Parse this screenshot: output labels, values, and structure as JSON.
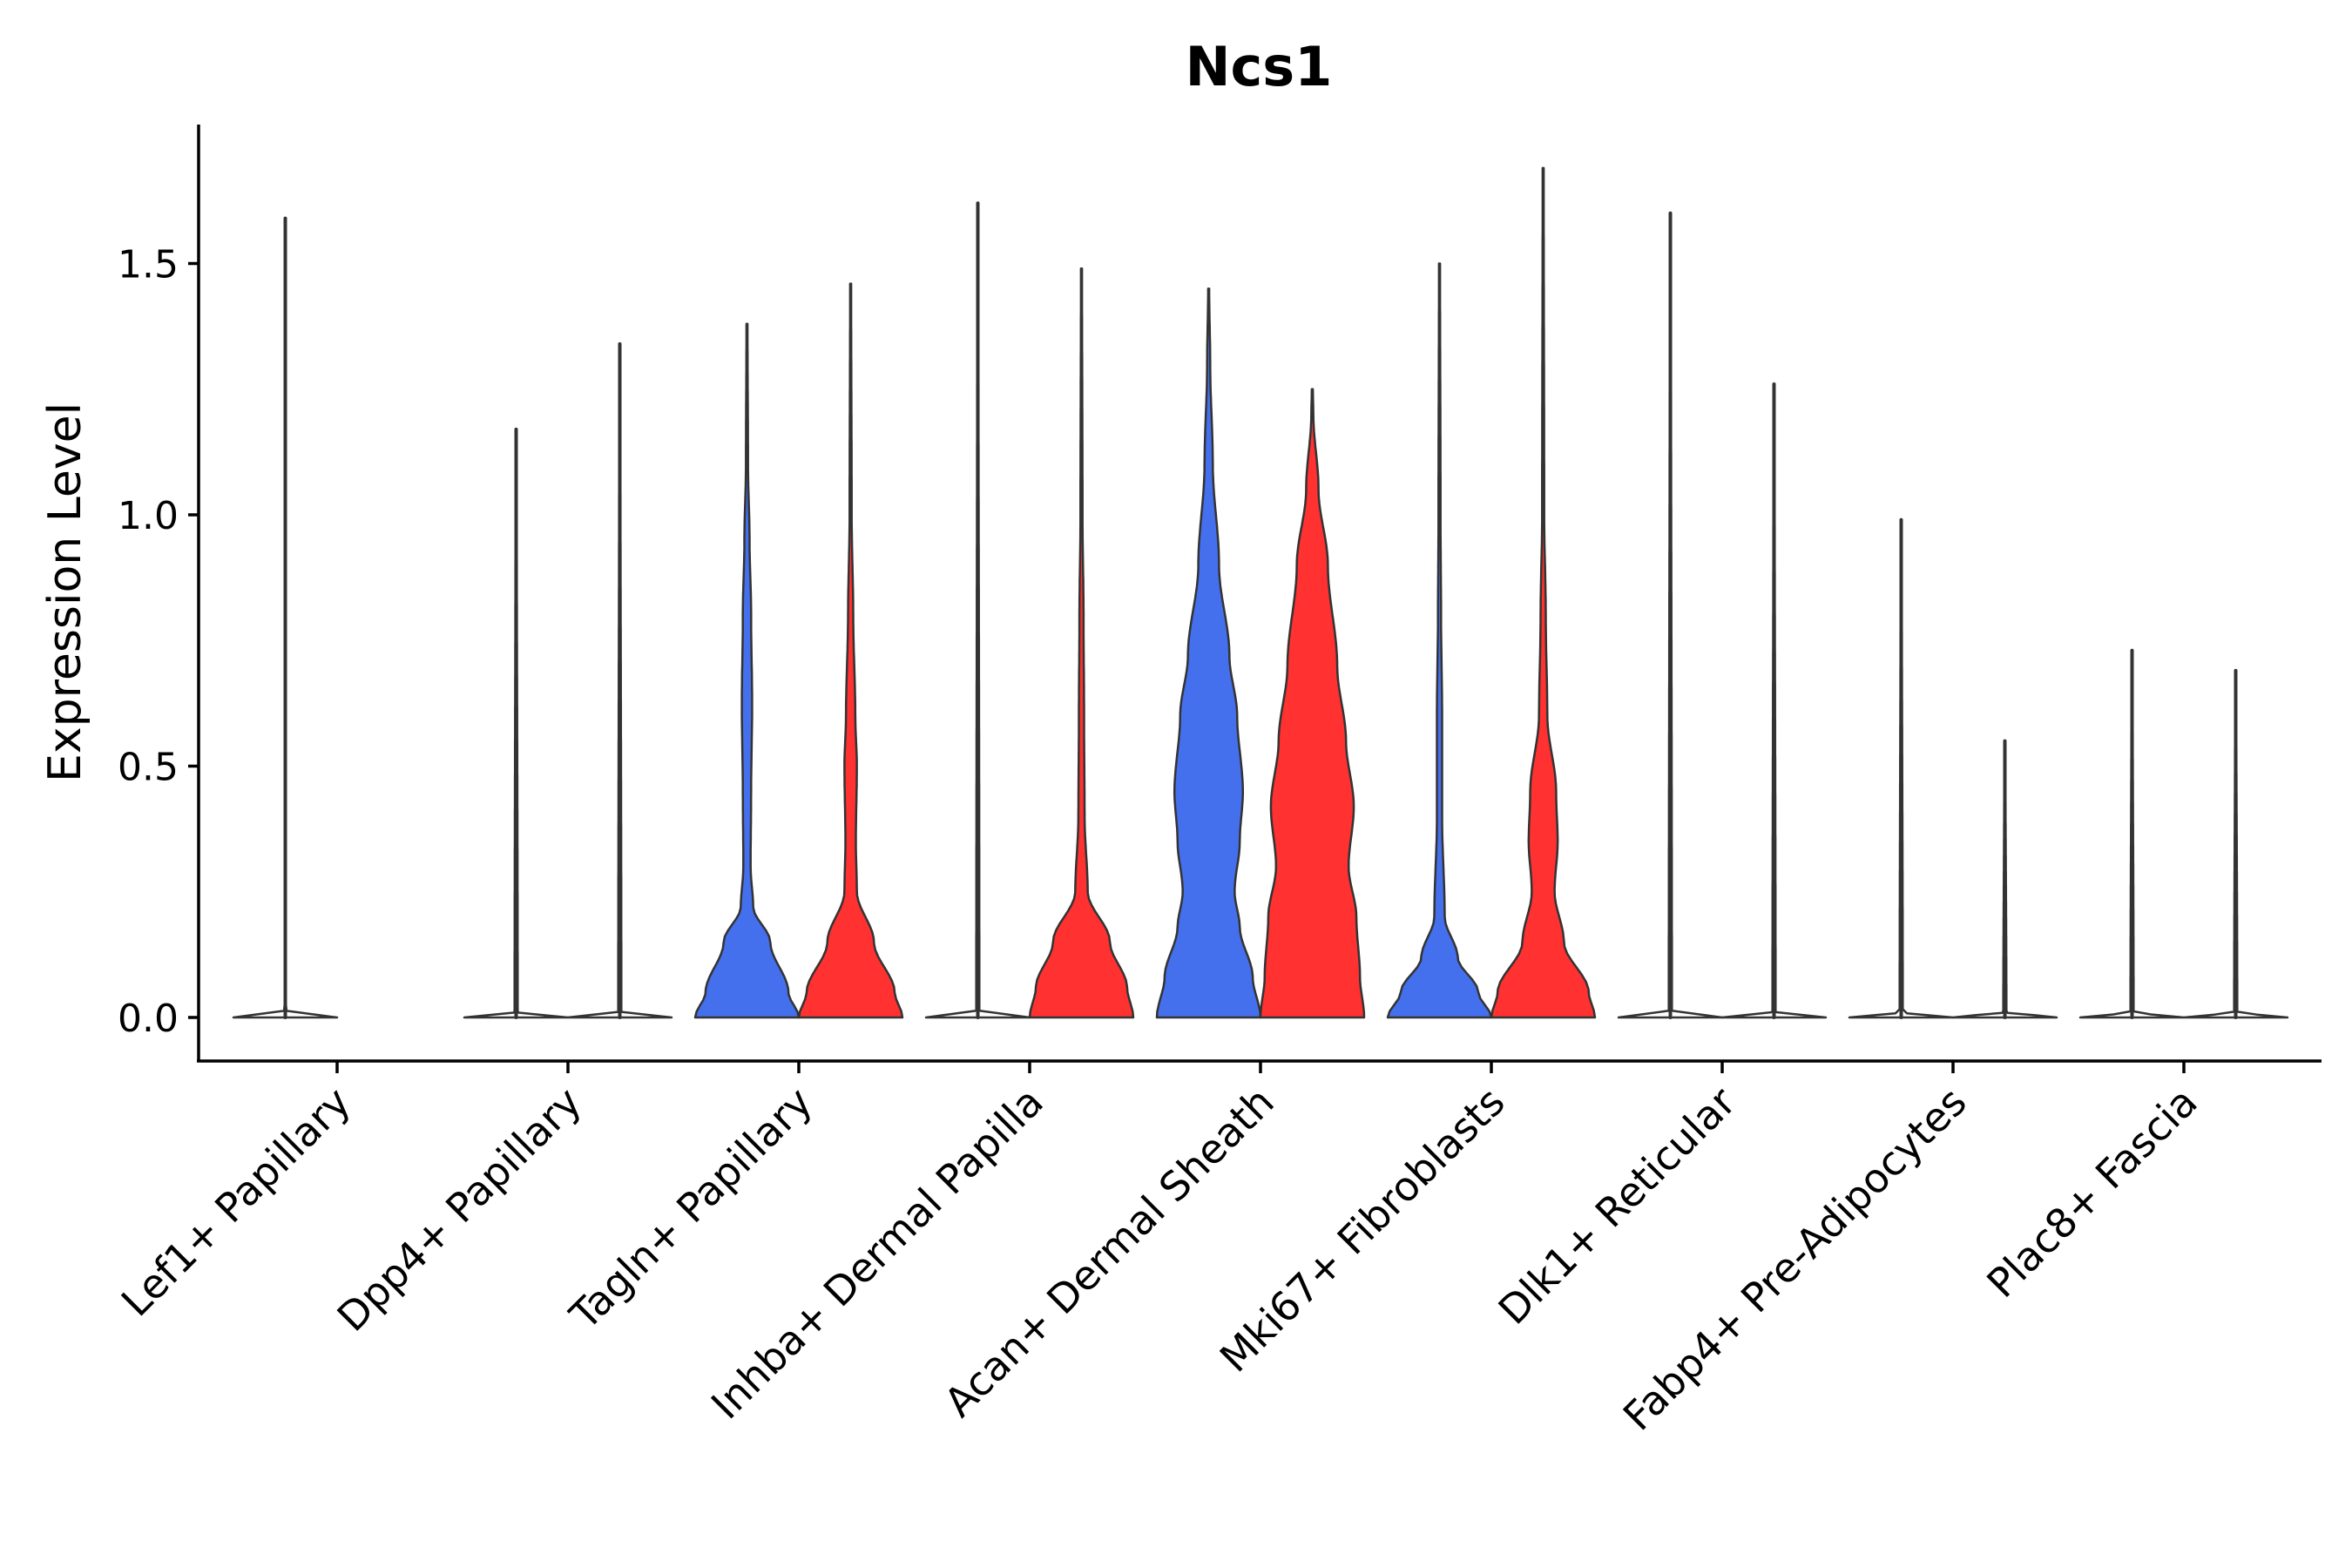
{
  "chart_data": {
    "type": "violin",
    "title": "Ncs1",
    "xlabel": "",
    "ylabel": "Expression Level",
    "ylim": [
      -0.085,
      1.78
    ],
    "yticks": [
      0.0,
      0.5,
      1.0,
      1.5
    ],
    "ytick_labels": [
      "0.0",
      "0.5",
      "1.0",
      "1.5"
    ],
    "grid": false,
    "legend": "none",
    "colors": {
      "group1": "#4470EE",
      "group2": "#FF3131",
      "empty": "#ffffff"
    },
    "categories": [
      "Lef1+ Papillary",
      "Dpp4+ Papillary",
      "Tagln+ Papillary",
      "Inhba+ Dermal Papilla",
      "Acan+ Dermal Sheath",
      "Mki67+ Fibroblasts",
      "Dlk1+ Reticular",
      "Fabp4+ Pre-Adipocytes",
      "Plac8+ Fascia"
    ],
    "series": [
      {
        "name": "group1",
        "max": [
          1.59,
          1.17,
          1.38,
          1.62,
          1.45,
          1.5,
          1.6,
          0.99,
          0.73
        ],
        "density": [
          [
            [
              0,
              1
            ],
            [
              0.01,
              0.03
            ],
            [
              0.02,
              0.01
            ],
            [
              1.59,
              0.01
            ]
          ],
          [
            [
              0,
              1
            ],
            [
              0.01,
              0.03
            ],
            [
              1.17,
              0.01
            ]
          ],
          [
            [
              0,
              1
            ],
            [
              0.05,
              0.8
            ],
            [
              0.15,
              0.45
            ],
            [
              0.22,
              0.12
            ],
            [
              0.3,
              0.07
            ],
            [
              0.45,
              0.08
            ],
            [
              0.62,
              0.1
            ],
            [
              0.8,
              0.08
            ],
            [
              0.95,
              0.05
            ],
            [
              1.1,
              0.02
            ],
            [
              1.38,
              0.01
            ]
          ],
          [
            [
              0,
              1
            ],
            [
              0.01,
              0.03
            ],
            [
              1.62,
              0.01
            ]
          ],
          [
            [
              0,
              1
            ],
            [
              0.08,
              0.85
            ],
            [
              0.18,
              0.6
            ],
            [
              0.25,
              0.5
            ],
            [
              0.35,
              0.6
            ],
            [
              0.45,
              0.66
            ],
            [
              0.6,
              0.55
            ],
            [
              0.72,
              0.4
            ],
            [
              0.9,
              0.2
            ],
            [
              1.1,
              0.08
            ],
            [
              1.3,
              0.03
            ],
            [
              1.45,
              0.01
            ]
          ],
          [
            [
              0,
              1
            ],
            [
              0.05,
              0.75
            ],
            [
              0.12,
              0.35
            ],
            [
              0.2,
              0.1
            ],
            [
              0.4,
              0.05
            ],
            [
              0.6,
              0.05
            ],
            [
              0.8,
              0.03
            ],
            [
              1.0,
              0.02
            ],
            [
              1.5,
              0.01
            ]
          ],
          [
            [
              0,
              1
            ],
            [
              0.01,
              0.03
            ],
            [
              1.6,
              0.01
            ]
          ],
          [
            [
              0,
              1
            ],
            [
              0.01,
              0.03
            ],
            [
              0.99,
              0.01
            ]
          ],
          [
            [
              0,
              1
            ],
            [
              0.01,
              0.03
            ],
            [
              0.73,
              0.01
            ]
          ]
        ]
      },
      {
        "name": "group2",
        "max": [
          0,
          1.34,
          1.46,
          1.49,
          1.25,
          1.69,
          1.26,
          0.55,
          0.69
        ],
        "density": [
          [],
          [
            [
              0,
              1
            ],
            [
              0.01,
              0.03
            ],
            [
              1.34,
              0.01
            ]
          ],
          [
            [
              0,
              1
            ],
            [
              0.05,
              0.85
            ],
            [
              0.15,
              0.45
            ],
            [
              0.25,
              0.12
            ],
            [
              0.35,
              0.1
            ],
            [
              0.5,
              0.12
            ],
            [
              0.6,
              0.09
            ],
            [
              0.8,
              0.05
            ],
            [
              1.0,
              0.02
            ],
            [
              1.46,
              0.01
            ]
          ],
          [
            [
              0,
              1
            ],
            [
              0.06,
              0.88
            ],
            [
              0.15,
              0.55
            ],
            [
              0.25,
              0.12
            ],
            [
              0.4,
              0.06
            ],
            [
              0.6,
              0.05
            ],
            [
              0.8,
              0.04
            ],
            [
              1.0,
              0.02
            ],
            [
              1.49,
              0.01
            ]
          ],
          [
            [
              0,
              1
            ],
            [
              0.08,
              0.92
            ],
            [
              0.2,
              0.85
            ],
            [
              0.3,
              0.7
            ],
            [
              0.42,
              0.8
            ],
            [
              0.55,
              0.65
            ],
            [
              0.7,
              0.48
            ],
            [
              0.9,
              0.3
            ],
            [
              1.05,
              0.12
            ],
            [
              1.2,
              0.02
            ],
            [
              1.25,
              0.01
            ]
          ],
          [
            [
              0,
              1
            ],
            [
              0.05,
              0.88
            ],
            [
              0.15,
              0.4
            ],
            [
              0.25,
              0.22
            ],
            [
              0.35,
              0.28
            ],
            [
              0.45,
              0.25
            ],
            [
              0.6,
              0.08
            ],
            [
              0.8,
              0.05
            ],
            [
              1.0,
              0.02
            ],
            [
              1.69,
              0.01
            ]
          ],
          [
            [
              0,
              1
            ],
            [
              0.01,
              0.03
            ],
            [
              1.26,
              0.01
            ]
          ],
          [
            [
              0,
              1
            ],
            [
              0.01,
              0.03
            ],
            [
              0.55,
              0.01
            ]
          ],
          [
            [
              0,
              1
            ],
            [
              0.01,
              0.03
            ],
            [
              0.69,
              0.01
            ]
          ]
        ]
      }
    ]
  }
}
